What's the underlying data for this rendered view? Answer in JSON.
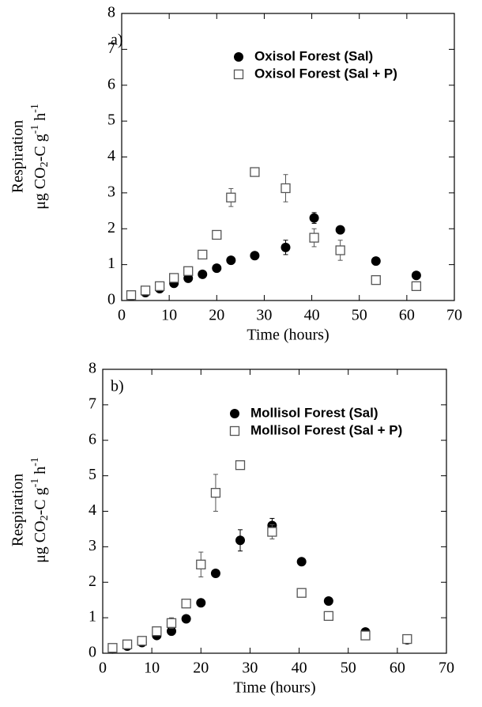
{
  "chart_data": [
    {
      "type": "scatter",
      "annotation": "a)",
      "xlabel": "Time (hours)",
      "ylabel": "Respiration",
      "ylabel_units": [
        "μg CO",
        "2",
        "-C g",
        "-1",
        " h",
        "-1"
      ],
      "xlim": [
        0,
        70
      ],
      "xticks": [
        0,
        10,
        20,
        30,
        40,
        50,
        60,
        70
      ],
      "ylim": [
        0,
        8
      ],
      "yticks": [
        0,
        1,
        2,
        3,
        4,
        5,
        6,
        7,
        8
      ],
      "x": [
        2,
        5,
        8,
        11,
        14,
        17,
        20,
        23,
        28,
        34.5,
        40.5,
        46,
        53.5,
        62
      ],
      "series": [
        {
          "name": "Oxisol Forest (Sal)",
          "color": "#000000",
          "marker": "circle",
          "values": [
            0.12,
            0.22,
            0.33,
            0.48,
            0.62,
            0.73,
            0.9,
            1.12,
            1.25,
            1.48,
            2.3,
            1.97,
            1.1,
            0.7
          ],
          "errors": [
            null,
            null,
            null,
            null,
            null,
            null,
            null,
            null,
            null,
            0.2,
            0.15,
            null,
            null,
            null
          ]
        },
        {
          "name": "Oxisol Forest (Sal + P)",
          "color": "#555555",
          "marker": "square",
          "values": [
            0.15,
            0.28,
            0.4,
            0.63,
            0.82,
            1.28,
            1.83,
            2.87,
            3.58,
            3.13,
            1.75,
            1.4,
            0.57,
            0.4
          ],
          "errors": [
            null,
            null,
            null,
            null,
            null,
            null,
            null,
            0.25,
            0.1,
            0.38,
            0.25,
            0.28,
            null,
            null
          ]
        }
      ]
    },
    {
      "type": "scatter",
      "annotation": "b)",
      "xlabel": "Time (hours)",
      "ylabel": "Respiration",
      "ylabel_units": [
        "μg CO",
        "2",
        "-C g",
        "-1",
        " h",
        "-1"
      ],
      "xlim": [
        0,
        70
      ],
      "xticks": [
        0,
        10,
        20,
        30,
        40,
        50,
        60,
        70
      ],
      "ylim": [
        0,
        8
      ],
      "yticks": [
        0,
        1,
        2,
        3,
        4,
        5,
        6,
        7,
        8
      ],
      "x": [
        2,
        5,
        8,
        11,
        14,
        17,
        20,
        23,
        28,
        34.5,
        40.5,
        46,
        53.5,
        62
      ],
      "series": [
        {
          "name": "Mollisol Forest (Sal)",
          "color": "#000000",
          "marker": "circle",
          "values": [
            0.12,
            0.2,
            0.3,
            0.5,
            0.62,
            0.97,
            1.42,
            2.25,
            3.18,
            3.6,
            2.58,
            1.47,
            0.6,
            0.38
          ],
          "errors": [
            null,
            null,
            null,
            null,
            null,
            null,
            null,
            0.1,
            0.3,
            0.2,
            null,
            null,
            null,
            null
          ]
        },
        {
          "name": "Mollisol Forest (Sal + P)",
          "color": "#555555",
          "marker": "square",
          "values": [
            0.15,
            0.25,
            0.35,
            0.62,
            0.85,
            1.4,
            2.5,
            4.52,
            5.3,
            3.42,
            1.7,
            1.05,
            0.5,
            0.4
          ],
          "errors": [
            null,
            null,
            null,
            null,
            0.15,
            0.1,
            0.35,
            0.52,
            0.1,
            0.2,
            null,
            null,
            null,
            null
          ]
        }
      ]
    }
  ]
}
